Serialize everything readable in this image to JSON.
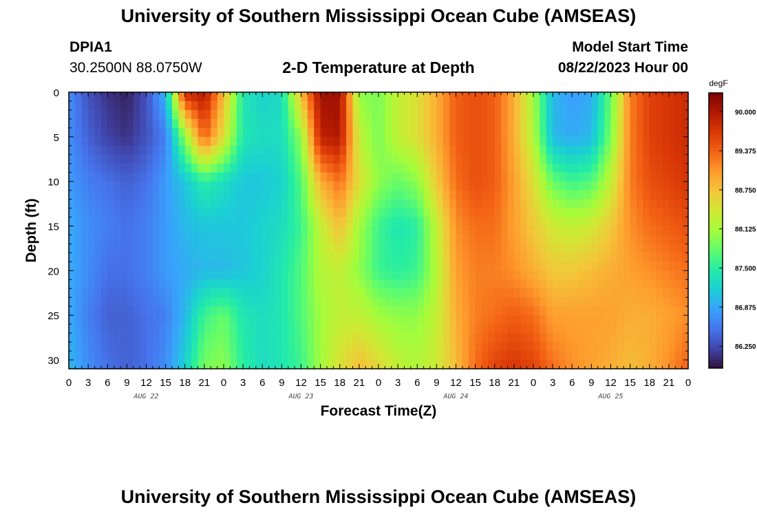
{
  "header": {
    "title": "University of Southern Mississippi Ocean Cube (AMSEAS)",
    "station_id": "DPIA1",
    "coordinates": "30.2500N  88.0750W",
    "plot_title": "2-D Temperature at Depth",
    "model_start_label": "Model Start Time",
    "model_start_value": "08/22/2023 Hour 00"
  },
  "footer": {
    "title": "University of Southern Mississippi Ocean Cube (AMSEAS)"
  },
  "chart_data": {
    "type": "heatmap",
    "xlabel": "Forecast Time(Z)",
    "ylabel": "Depth (ft)",
    "colorbar_unit": "degF",
    "xlim": [
      0,
      96
    ],
    "ylim": [
      0,
      31
    ],
    "x_tick_labels": [
      "0",
      "3",
      "6",
      "9",
      "12",
      "15",
      "18",
      "21",
      "0",
      "3",
      "6",
      "9",
      "12",
      "15",
      "18",
      "21",
      "0",
      "3",
      "6",
      "9",
      "12",
      "15",
      "18",
      "21",
      "0",
      "3",
      "6",
      "9",
      "12",
      "15",
      "18",
      "21",
      "0"
    ],
    "y_tick_labels": [
      "0",
      "5",
      "10",
      "15",
      "20",
      "25",
      "30"
    ],
    "day_labels": [
      "AUG 22",
      "AUG 23",
      "AUG 24",
      "AUG 25"
    ],
    "colorbar_ticks": [
      "90.000",
      "89.375",
      "88.750",
      "88.125",
      "87.500",
      "86.875",
      "86.250"
    ],
    "colorbar_range": [
      85.9,
      90.3
    ],
    "colormap": [
      "#30123b",
      "#4145ab",
      "#4675ed",
      "#39a2fc",
      "#1bcfd4",
      "#24eca6",
      "#61fc6c",
      "#a4fc3b",
      "#d1e834",
      "#f3c63a",
      "#fe9b2d",
      "#f36315",
      "#d93806",
      "#b11901",
      "#7a0402"
    ],
    "x": [
      0,
      3,
      6,
      9,
      12,
      15,
      18,
      21,
      24,
      27,
      30,
      33,
      36,
      39,
      42,
      45,
      48,
      51,
      54,
      57,
      60,
      63,
      66,
      69,
      72,
      75,
      78,
      81,
      84,
      87,
      90,
      93,
      96
    ],
    "depths": [
      0,
      5,
      10,
      15,
      20,
      25,
      31
    ],
    "temperature_degF": [
      [
        86.7,
        86.3,
        86.1,
        86.0,
        86.3,
        87.0,
        89.8,
        90.0,
        88.8,
        87.4,
        87.2,
        87.3,
        88.8,
        90.1,
        90.1,
        88.0,
        87.9,
        88.3,
        88.5,
        88.9,
        89.4,
        89.5,
        89.4,
        88.9,
        88.1,
        87.0,
        86.8,
        86.9,
        87.8,
        89.2,
        89.6,
        89.7,
        89.8
      ],
      [
        86.7,
        86.4,
        86.2,
        86.1,
        86.3,
        86.6,
        88.0,
        89.4,
        88.5,
        87.4,
        87.3,
        87.3,
        88.0,
        89.9,
        90.0,
        88.3,
        87.9,
        88.3,
        88.5,
        88.9,
        89.4,
        89.5,
        89.4,
        88.9,
        88.2,
        87.0,
        86.9,
        87.0,
        87.9,
        89.2,
        89.6,
        89.7,
        89.8
      ],
      [
        86.8,
        86.6,
        86.5,
        86.4,
        86.5,
        86.8,
        87.1,
        87.5,
        87.3,
        87.1,
        87.1,
        87.2,
        87.7,
        88.9,
        89.3,
        88.5,
        88.0,
        87.8,
        88.0,
        88.7,
        89.3,
        89.5,
        89.4,
        89.0,
        88.5,
        87.8,
        87.6,
        87.7,
        88.3,
        89.2,
        89.5,
        89.6,
        89.7
      ],
      [
        86.9,
        86.7,
        86.6,
        86.5,
        86.6,
        86.8,
        87.0,
        87.1,
        87.1,
        87.1,
        87.2,
        87.3,
        87.6,
        88.3,
        88.8,
        88.1,
        87.6,
        87.4,
        87.5,
        88.3,
        89.1,
        89.3,
        89.3,
        89.0,
        88.7,
        88.4,
        88.3,
        88.4,
        88.7,
        89.1,
        89.3,
        89.4,
        89.5
      ],
      [
        86.9,
        86.7,
        86.5,
        86.5,
        86.6,
        86.8,
        86.9,
        87.0,
        87.0,
        87.1,
        87.2,
        87.4,
        87.7,
        88.2,
        88.3,
        88.0,
        87.6,
        87.5,
        87.6,
        88.2,
        89.0,
        89.2,
        89.2,
        89.1,
        88.9,
        88.7,
        88.7,
        88.8,
        88.9,
        89.0,
        89.1,
        89.2,
        89.3
      ],
      [
        86.9,
        86.6,
        86.4,
        86.4,
        86.5,
        86.6,
        87.0,
        87.6,
        87.8,
        87.4,
        87.3,
        87.4,
        87.7,
        88.1,
        88.3,
        88.3,
        88.1,
        88.0,
        88.0,
        88.3,
        88.9,
        89.2,
        89.3,
        89.4,
        89.3,
        89.0,
        89.0,
        89.0,
        89.0,
        88.9,
        88.9,
        89.0,
        89.1
      ],
      [
        87.0,
        86.7,
        86.5,
        86.4,
        86.5,
        86.7,
        87.2,
        87.9,
        88.0,
        87.5,
        87.3,
        87.4,
        87.6,
        88.1,
        88.5,
        88.8,
        88.6,
        88.3,
        88.2,
        88.4,
        88.8,
        89.3,
        89.6,
        89.7,
        89.6,
        89.3,
        89.1,
        89.0,
        88.9,
        88.8,
        88.9,
        89.1,
        89.4
      ]
    ]
  }
}
